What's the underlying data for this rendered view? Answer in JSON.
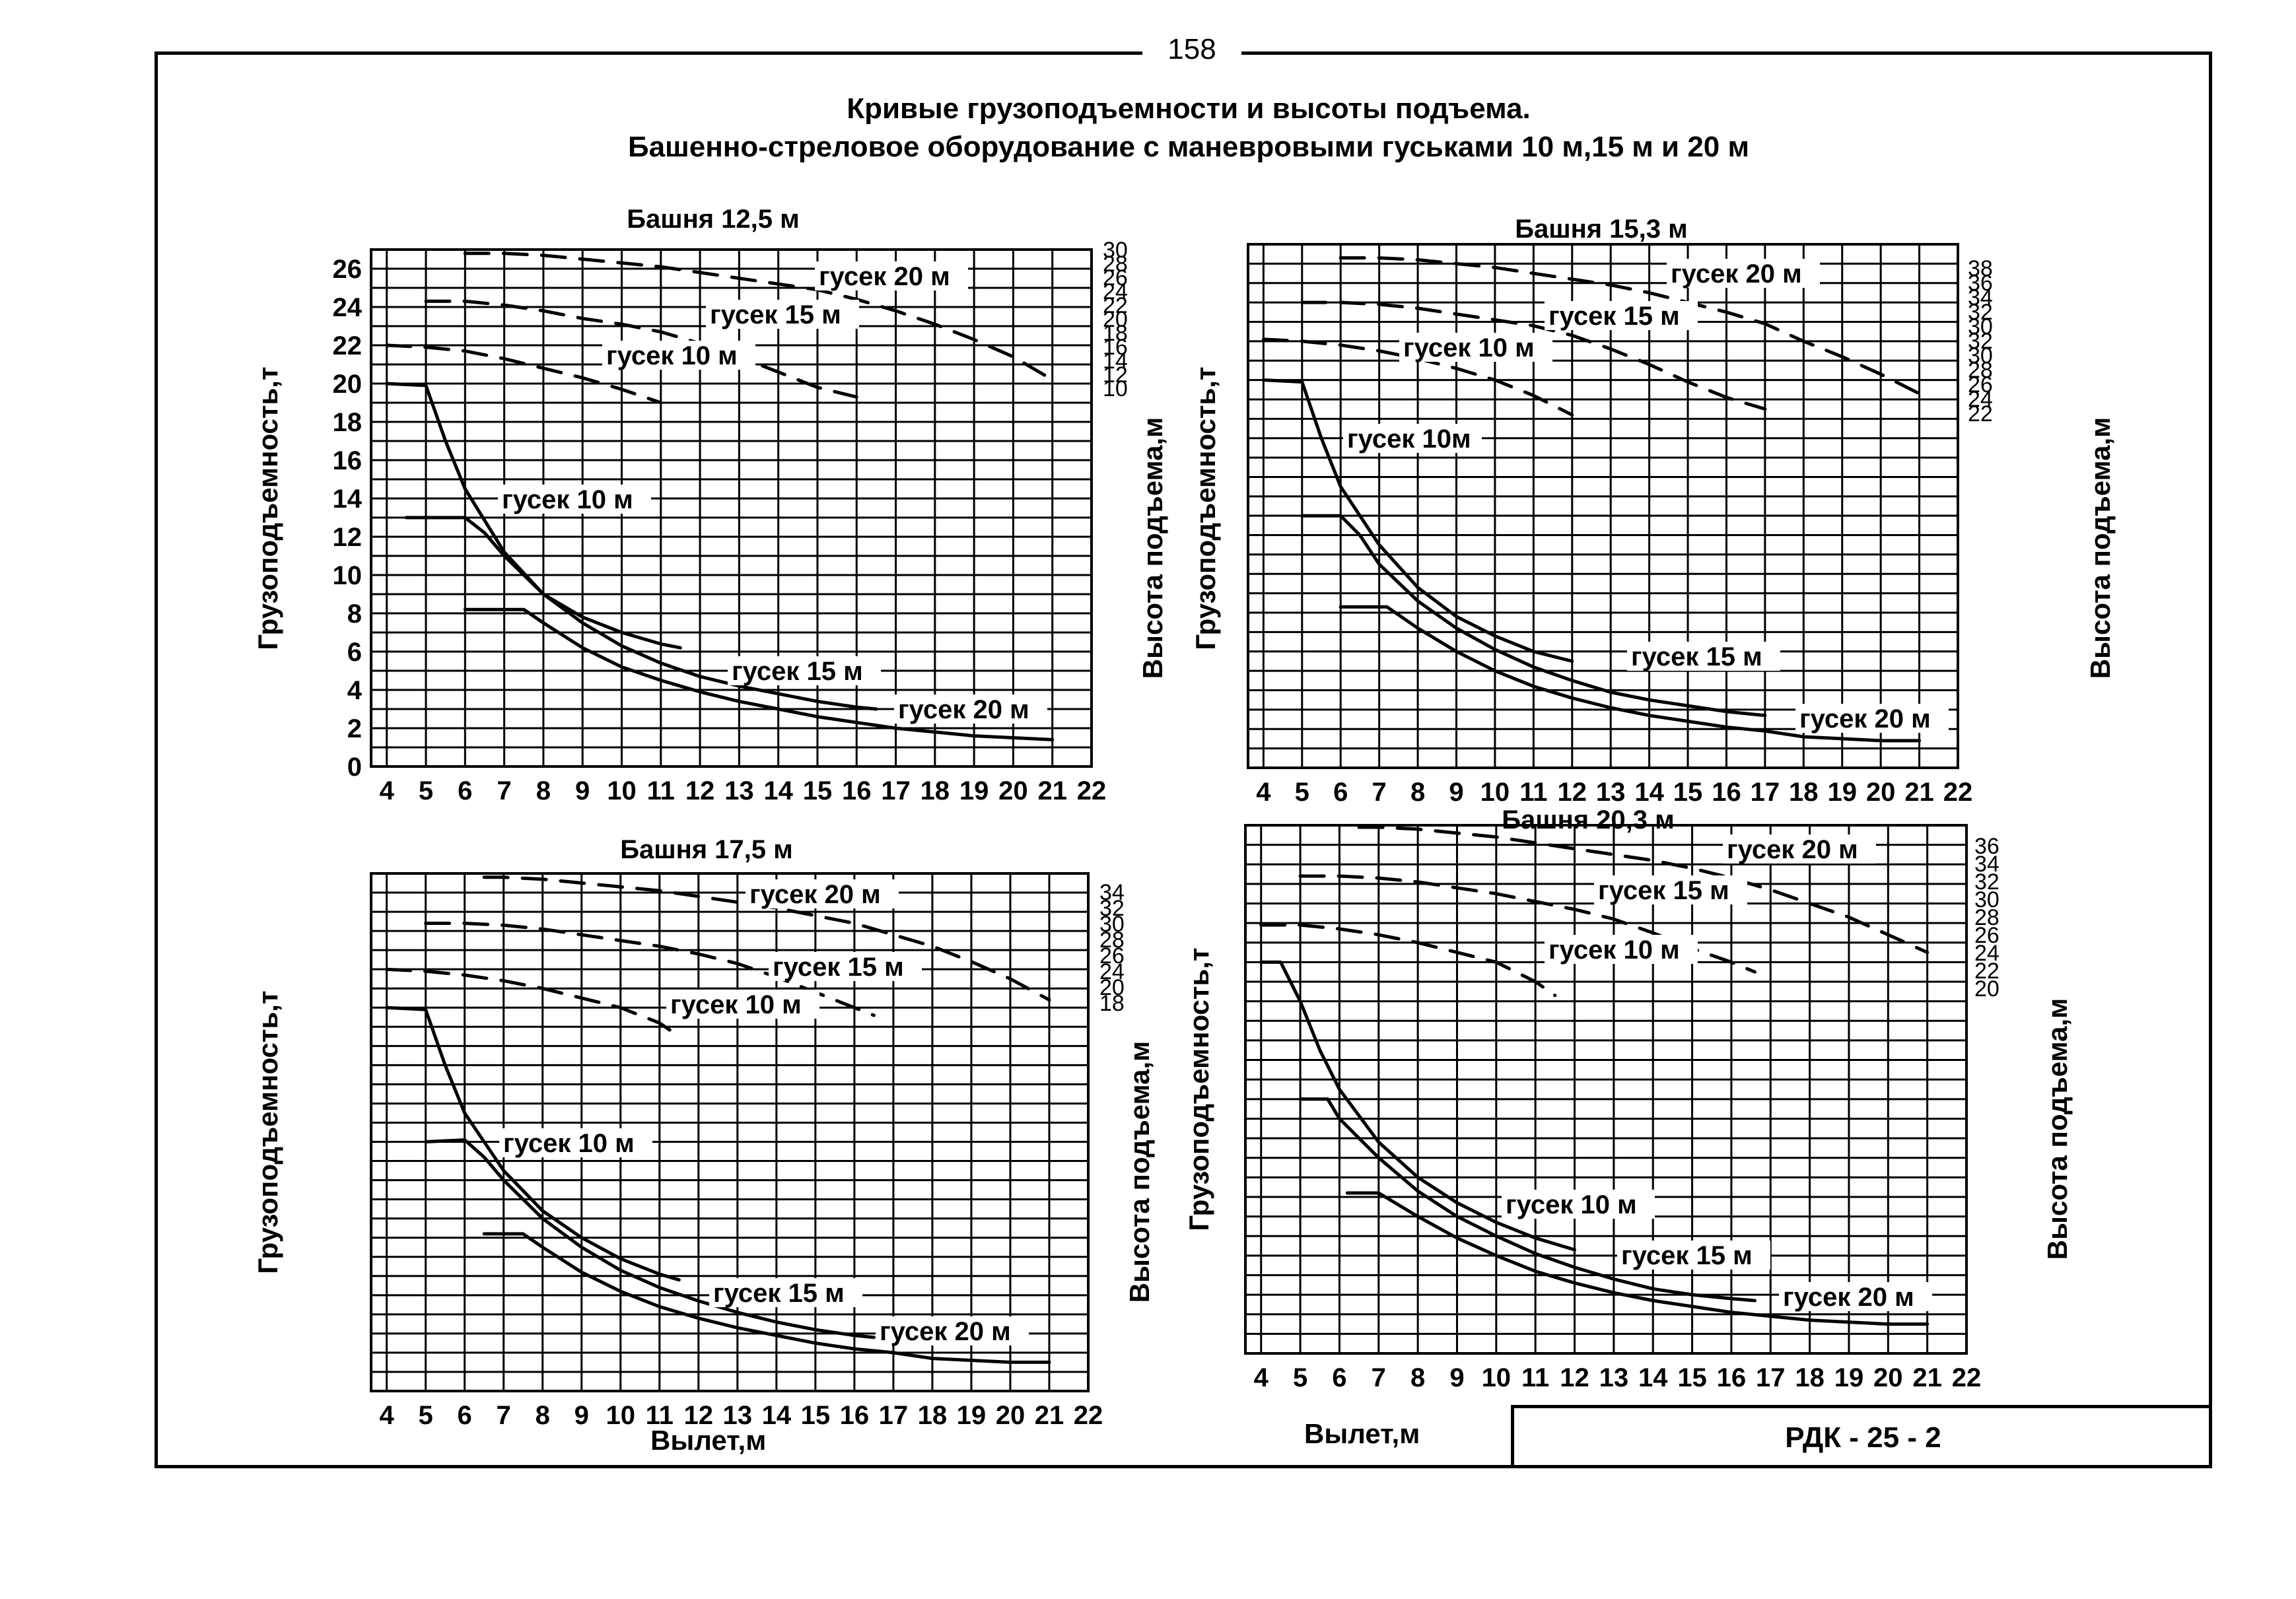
{
  "page": {
    "page_number": "158",
    "title_line1": "Кривые грузоподъемности и высоты подъема.",
    "title_line2": "Башенно-стреловое оборудование с маневровыми гуськами 10 м,15 м и 20 м",
    "stamp": "РДК - 25 - 2",
    "x_axis_label": "Вылет,м"
  },
  "chart_data": [
    {
      "type": "line",
      "title": "Башня 12,5 м",
      "xlabel": "Вылет,м",
      "ylabel": "Грузоподъемность,т",
      "y2label": "Высота подъема,м",
      "x_ticks": [
        "4",
        "5",
        "6",
        "7",
        "8",
        "9",
        "10",
        "11",
        "12",
        "13",
        "14",
        "15",
        "16",
        "17",
        "18",
        "19",
        "20",
        "21",
        "22"
      ],
      "xlim": [
        3.6,
        22
      ],
      "y_ticks": [
        "0",
        "2",
        "4",
        "6",
        "8",
        "10",
        "12",
        "14",
        "16",
        "18",
        "20",
        "22",
        "24",
        "26"
      ],
      "ylim": [
        0,
        27
      ],
      "y2_ticks": [
        "30",
        "28",
        "26",
        "24",
        "22",
        "20",
        "18",
        "16",
        "14",
        "12",
        "10"
      ],
      "grid": true,
      "series": [
        {
          "name": "гусек 10 м",
          "kind": "capacity",
          "x": [
            4,
            5,
            5.5,
            6,
            7,
            8,
            9,
            10,
            11,
            11.5
          ],
          "y": [
            20,
            19.9,
            17,
            14.5,
            11.2,
            9,
            7.8,
            7,
            6.4,
            6.2
          ]
        },
        {
          "name": "гусек 15 м",
          "kind": "capacity",
          "x": [
            4.5,
            6,
            6.5,
            7,
            8,
            9,
            10,
            11,
            12,
            13,
            14,
            15,
            16,
            16.5
          ],
          "y": [
            13,
            13,
            12.2,
            11,
            9,
            7.5,
            6.3,
            5.4,
            4.7,
            4.2,
            3.8,
            3.4,
            3.1,
            3
          ]
        },
        {
          "name": "гусек 20 м",
          "kind": "capacity",
          "x": [
            6,
            7.5,
            8,
            9,
            10,
            11,
            12,
            13,
            14,
            15,
            16,
            17,
            18,
            19,
            20,
            21
          ],
          "y": [
            8.2,
            8.2,
            7.5,
            6.2,
            5.2,
            4.5,
            3.9,
            3.4,
            3,
            2.6,
            2.3,
            2,
            1.8,
            1.6,
            1.5,
            1.4
          ]
        },
        {
          "name": "гусек 10 м",
          "kind": "height",
          "x": [
            4,
            5,
            6,
            7,
            8,
            9,
            10,
            11
          ],
          "y": [
            22,
            21.9,
            21.7,
            21.3,
            20.8,
            20.3,
            19.7,
            19
          ]
        },
        {
          "name": "гусек 15 м",
          "kind": "height",
          "x": [
            5,
            6,
            7,
            8,
            9,
            10,
            11,
            12,
            13,
            14,
            15,
            16
          ],
          "y": [
            24.3,
            24.3,
            24.1,
            23.8,
            23.4,
            23.1,
            22.7,
            22.1,
            21.4,
            20.6,
            19.8,
            19.3
          ]
        },
        {
          "name": "гусек 20 м",
          "kind": "height",
          "x": [
            6,
            7,
            8,
            9,
            10,
            11,
            12,
            13,
            14,
            15,
            16,
            17,
            18,
            19,
            20,
            21
          ],
          "y": [
            26.8,
            26.8,
            26.7,
            26.5,
            26.3,
            26.1,
            25.8,
            25.5,
            25.2,
            24.9,
            24.4,
            23.8,
            23.1,
            22.3,
            21.4,
            20.2
          ]
        }
      ],
      "annotations": [
        "гусек 20 м",
        "гусек 15 м",
        "гусек 10 м",
        "гусек 10 м",
        "гусек 15 м",
        "гусек 20 м"
      ]
    },
    {
      "type": "line",
      "title": "Башня 15,3 м",
      "xlabel": "Вылет,м",
      "ylabel": "Грузоподъемность,т",
      "y2label": "Высота подъема,м",
      "x_ticks": [
        "4",
        "5",
        "6",
        "7",
        "8",
        "9",
        "10",
        "11",
        "12",
        "13",
        "14",
        "15",
        "16",
        "17",
        "18",
        "19",
        "20",
        "21",
        "22"
      ],
      "xlim": [
        3.6,
        22
      ],
      "y_ticks": [],
      "ylim": [
        0,
        27
      ],
      "y2_ticks": [
        "38",
        "36",
        "34",
        "32",
        "30",
        "32",
        "30",
        "28",
        "26",
        "24",
        "22"
      ],
      "grid": true,
      "series": [
        {
          "name": "гусек 10м",
          "kind": "capacity",
          "x": [
            4,
            5,
            5.5,
            6,
            7,
            8,
            9,
            10,
            11,
            12
          ],
          "y": [
            20,
            19.9,
            17,
            14.5,
            11.5,
            9.3,
            7.8,
            6.8,
            6,
            5.5
          ]
        },
        {
          "name": "гусек 15 м",
          "kind": "capacity",
          "x": [
            5,
            6,
            6.5,
            7,
            8,
            9,
            10,
            11,
            12,
            13,
            14,
            15,
            16,
            17
          ],
          "y": [
            13,
            13,
            12,
            10.5,
            8.6,
            7.2,
            6.1,
            5.2,
            4.5,
            3.9,
            3.5,
            3.2,
            2.9,
            2.7
          ]
        },
        {
          "name": "гусек 20 м",
          "kind": "capacity",
          "x": [
            6,
            7.2,
            8,
            9,
            10,
            11,
            12,
            13,
            14,
            15,
            16,
            17,
            18,
            19,
            20,
            21
          ],
          "y": [
            8.3,
            8.3,
            7.2,
            6,
            5,
            4.2,
            3.6,
            3.1,
            2.7,
            2.4,
            2.1,
            1.9,
            1.6,
            1.5,
            1.4,
            1.4
          ]
        },
        {
          "name": "гусек 10 м",
          "kind": "height",
          "x": [
            4,
            5,
            6,
            7,
            8,
            9,
            10,
            11,
            12
          ],
          "y": [
            22.1,
            22,
            21.8,
            21.5,
            21.1,
            20.6,
            20,
            19.2,
            18.2
          ]
        },
        {
          "name": "гусек 15 м",
          "kind": "height",
          "x": [
            5,
            6,
            7,
            8,
            9,
            10,
            11,
            12,
            13,
            14,
            15,
            16,
            17
          ],
          "y": [
            24,
            24,
            23.9,
            23.7,
            23.4,
            23.1,
            22.8,
            22.3,
            21.6,
            20.8,
            19.9,
            19.1,
            18.5
          ]
        },
        {
          "name": "гусек 20 м",
          "kind": "height",
          "x": [
            6,
            7,
            8,
            9,
            10,
            11,
            12,
            13,
            14,
            15,
            16,
            17,
            18,
            19,
            20,
            21
          ],
          "y": [
            26.3,
            26.3,
            26.2,
            26,
            25.8,
            25.5,
            25.2,
            24.9,
            24.5,
            24,
            23.5,
            22.9,
            22,
            21.2,
            20.3,
            19.3
          ]
        }
      ],
      "annotations": [
        "гусек 20 м",
        "гусек 15 м",
        "гусек 10 м",
        "гусек 10м",
        "гусек 15 м",
        "гусек 20 м"
      ]
    },
    {
      "type": "line",
      "title": "Башня 17,5 м",
      "xlabel": "Вылет,м",
      "ylabel": "Грузоподъемность,т",
      "y2label": "Высота подъема,м",
      "x_ticks": [
        "4",
        "5",
        "6",
        "7",
        "8",
        "9",
        "10",
        "11",
        "12",
        "13",
        "14",
        "15",
        "16",
        "17",
        "18",
        "19",
        "20",
        "21",
        "22"
      ],
      "xlim": [
        3.6,
        22
      ],
      "y_ticks": [],
      "ylim": [
        0,
        27
      ],
      "y2_ticks": [
        "34",
        "32",
        "30",
        "28",
        "26",
        "24",
        "20",
        "18"
      ],
      "grid": true,
      "series": [
        {
          "name": "гусек 10 м",
          "kind": "capacity",
          "x": [
            4,
            5,
            5.5,
            6,
            7,
            8,
            9,
            10,
            11,
            11.5
          ],
          "y": [
            20,
            19.9,
            17,
            14.5,
            11.5,
            9.4,
            8,
            6.9,
            6.1,
            5.8
          ]
        },
        {
          "name": "гусек 15 м",
          "kind": "capacity",
          "x": [
            5,
            6,
            6.5,
            7,
            8,
            9,
            10,
            11,
            12,
            13,
            14,
            15,
            16,
            16.5
          ],
          "y": [
            13,
            13.1,
            12.2,
            11,
            9,
            7.5,
            6.3,
            5.4,
            4.7,
            4.1,
            3.6,
            3.2,
            2.9,
            2.8
          ]
        },
        {
          "name": "гусек 20 м",
          "kind": "capacity",
          "x": [
            6.5,
            7.5,
            8,
            9,
            10,
            11,
            12,
            13,
            14,
            15,
            16,
            17,
            18,
            19,
            20,
            21
          ],
          "y": [
            8.2,
            8.2,
            7.5,
            6.2,
            5.2,
            4.4,
            3.8,
            3.3,
            2.9,
            2.5,
            2.2,
            2,
            1.7,
            1.6,
            1.5,
            1.5
          ]
        },
        {
          "name": "гусек 10 м",
          "kind": "height",
          "x": [
            4,
            5,
            6,
            7,
            8,
            9,
            10,
            11,
            11.5
          ],
          "y": [
            22,
            21.9,
            21.7,
            21.4,
            21,
            20.5,
            20,
            19.2,
            18.5
          ]
        },
        {
          "name": "гусек 15 м",
          "kind": "height",
          "x": [
            5,
            6,
            7,
            8,
            9,
            10,
            11,
            12,
            13,
            14,
            15,
            16,
            16.5
          ],
          "y": [
            24.4,
            24.4,
            24.3,
            24.1,
            23.8,
            23.5,
            23.2,
            22.8,
            22.3,
            21.6,
            20.8,
            20,
            19.6
          ]
        },
        {
          "name": "гусек 20 м",
          "kind": "height",
          "x": [
            6.5,
            7,
            8,
            9,
            10,
            11,
            12,
            13,
            14,
            15,
            16,
            17,
            18,
            19,
            20,
            21
          ],
          "y": [
            26.8,
            26.8,
            26.7,
            26.5,
            26.3,
            26.1,
            25.8,
            25.5,
            25.2,
            24.8,
            24.4,
            23.8,
            23.2,
            22.4,
            21.5,
            20.4
          ]
        }
      ],
      "annotations": [
        "гусек 20 м",
        "гусек 15 м",
        "гусек 10 м",
        "гусек 10 м",
        "гусек 15 м",
        "гусек 20 м"
      ]
    },
    {
      "type": "line",
      "title": "Башня 20,3 м",
      "xlabel": "Вылет,м",
      "ylabel": "Грузоподъемность,т",
      "y2label": "Высота подъема,м",
      "x_ticks": [
        "4",
        "5",
        "6",
        "7",
        "8",
        "9",
        "10",
        "11",
        "12",
        "13",
        "14",
        "15",
        "16",
        "17",
        "18",
        "19",
        "20",
        "21",
        "22"
      ],
      "xlim": [
        3.6,
        22
      ],
      "y_ticks": [],
      "ylim": [
        0,
        27
      ],
      "y2_ticks": [
        "36",
        "34",
        "32",
        "30",
        "28",
        "26",
        "24",
        "22",
        "20"
      ],
      "grid": true,
      "series": [
        {
          "name": "гусек 10 м",
          "kind": "capacity",
          "x": [
            4,
            4.5,
            5,
            5.5,
            6,
            7,
            8,
            9,
            10,
            11,
            12
          ],
          "y": [
            20,
            20,
            18,
            15.5,
            13.5,
            10.8,
            9,
            7.7,
            6.7,
            5.9,
            5.3
          ]
        },
        {
          "name": "гусек 15 м",
          "kind": "capacity",
          "x": [
            5,
            5.7,
            6,
            7,
            8,
            9,
            10,
            11,
            12,
            13,
            14,
            15,
            16,
            16.6
          ],
          "y": [
            13,
            13,
            12,
            10,
            8.3,
            7,
            6,
            5.1,
            4.4,
            3.8,
            3.3,
            3,
            2.8,
            2.7
          ]
        },
        {
          "name": "гусек 20 м",
          "kind": "capacity",
          "x": [
            6.2,
            7,
            8,
            9,
            10,
            11,
            12,
            13,
            14,
            15,
            16,
            17,
            18,
            19,
            20,
            21
          ],
          "y": [
            8.2,
            8.2,
            7,
            5.9,
            5,
            4.2,
            3.6,
            3.1,
            2.7,
            2.4,
            2.1,
            1.9,
            1.7,
            1.6,
            1.5,
            1.5
          ]
        },
        {
          "name": "гусек 10 м",
          "kind": "height",
          "x": [
            4,
            5,
            6,
            7,
            8,
            9,
            10,
            11,
            11.5
          ],
          "y": [
            21.9,
            21.9,
            21.7,
            21.4,
            21,
            20.5,
            20,
            19,
            18.3
          ]
        },
        {
          "name": "гусек 15 м",
          "kind": "height",
          "x": [
            5,
            6,
            7,
            8,
            9,
            10,
            11,
            12,
            13,
            14,
            15,
            16,
            16.6
          ],
          "y": [
            24.4,
            24.4,
            24.3,
            24.1,
            23.8,
            23.5,
            23.1,
            22.7,
            22.2,
            21.5,
            20.7,
            20,
            19.5
          ]
        },
        {
          "name": "гусек 20 м",
          "kind": "height",
          "x": [
            6.5,
            7,
            8,
            9,
            10,
            11,
            12,
            13,
            14,
            15,
            16,
            17,
            18,
            19,
            20,
            21
          ],
          "y": [
            26.9,
            26.9,
            26.8,
            26.6,
            26.4,
            26.1,
            25.8,
            25.5,
            25.2,
            24.8,
            24.3,
            23.7,
            23,
            22.3,
            21.4,
            20.5
          ]
        }
      ],
      "annotations": [
        "гусек 20 м",
        "гусек 15 м",
        "гусек 10 м",
        "гусек 10 м",
        "гусек 15 м",
        "гусек 20 м"
      ]
    }
  ]
}
